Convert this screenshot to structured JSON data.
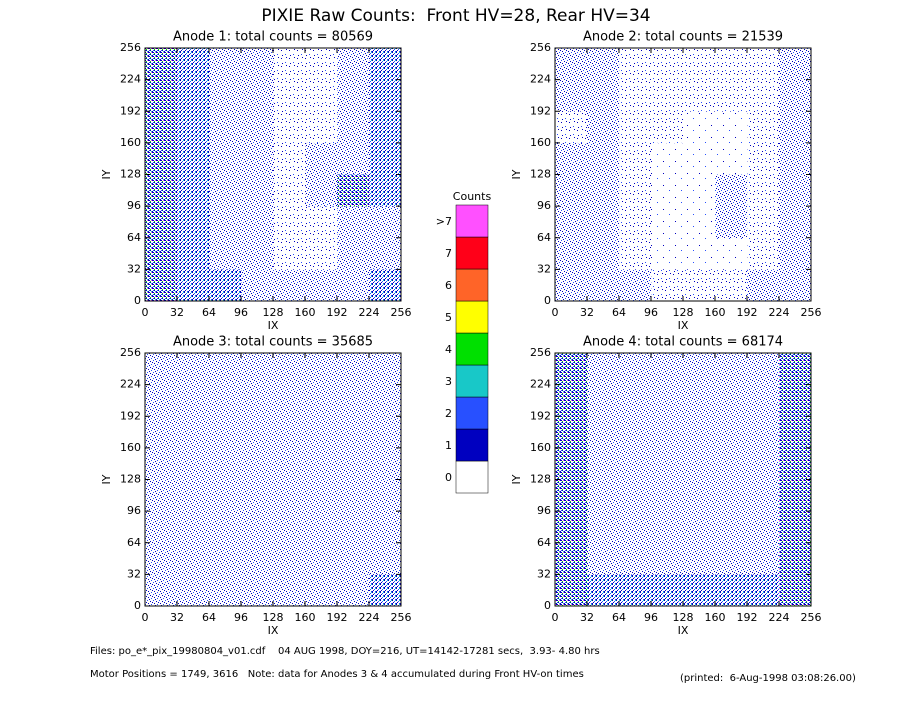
{
  "title": "PIXIE Raw Counts:  Front HV=28, Rear HV=34",
  "colorbar": {
    "title": "Counts",
    "levels": [
      {
        "label": "0",
        "color": "#ffffff"
      },
      {
        "label": "1",
        "color": "#0000c0"
      },
      {
        "label": "2",
        "color": "#2850ff"
      },
      {
        "label": "3",
        "color": "#18c8c8"
      },
      {
        "label": "4",
        "color": "#00e000"
      },
      {
        "label": "5",
        "color": "#ffff00"
      },
      {
        "label": "6",
        "color": "#ff6428"
      },
      {
        "label": "7",
        "color": "#ff0018"
      },
      {
        "label": ">7",
        "color": "#ff50ff"
      }
    ]
  },
  "footer": [
    "Files: po_e*_pix_19980804_v01.cdf    04 AUG 1998, DOY=216, UT=14142-17281 secs,  3.93- 4.80 hrs",
    "Motor Positions = 1749, 3616   Note: data for Anodes 3 & 4 accumulated during Front HV-on times",
    "(printed:  6-Aug-1998 03:08:26.00)"
  ],
  "chart_data": [
    {
      "type": "heatmap",
      "title": "Anode 1: total counts = 80569",
      "xlabel": "IX",
      "ylabel": "IY",
      "xlim": [
        0,
        256
      ],
      "ylim": [
        0,
        256
      ],
      "xticks": [
        0,
        32,
        64,
        96,
        128,
        160,
        192,
        224,
        256
      ],
      "yticks": [
        0,
        32,
        64,
        96,
        128,
        160,
        192,
        224,
        256
      ],
      "values": [
        [
          3,
          2,
          1.5,
          1,
          0.5,
          0.5,
          1,
          2.5
        ],
        [
          3,
          2,
          1.5,
          1,
          0.5,
          0.5,
          1.5,
          2.5
        ],
        [
          3,
          2,
          1.5,
          1,
          0.5,
          0.5,
          1.5,
          2.5
        ],
        [
          3,
          2.5,
          1.5,
          1,
          0.5,
          1,
          1.5,
          2
        ],
        [
          3,
          2,
          1.5,
          1,
          0.5,
          1,
          3,
          2
        ],
        [
          3,
          2,
          1.5,
          1,
          0.5,
          0.5,
          1.5,
          1.5
        ],
        [
          3,
          2,
          1.5,
          1,
          0.5,
          0.5,
          1,
          1.5
        ],
        [
          3,
          2.5,
          2,
          1.5,
          1,
          1,
          1.5,
          2
        ]
      ]
    },
    {
      "type": "heatmap",
      "title": "Anode 2: total counts = 21539",
      "xlabel": "IX",
      "ylabel": "IY",
      "xlim": [
        0,
        256
      ],
      "ylim": [
        0,
        256
      ],
      "xticks": [
        0,
        32,
        64,
        96,
        128,
        160,
        192,
        224,
        256
      ],
      "yticks": [
        0,
        32,
        64,
        96,
        128,
        160,
        192,
        224,
        256
      ],
      "values": [
        [
          1,
          1.5,
          0.5,
          0.5,
          0.5,
          0.5,
          0.5,
          1.5
        ],
        [
          1,
          1,
          0.5,
          0.5,
          0.5,
          0.5,
          0.5,
          1.5
        ],
        [
          0.5,
          1.5,
          0.5,
          0.5,
          0.3,
          0.3,
          0.5,
          1
        ],
        [
          1,
          1,
          0.5,
          0.3,
          0.3,
          0.3,
          0.5,
          1
        ],
        [
          1.5,
          1,
          0.5,
          0.3,
          0.3,
          1.5,
          0.5,
          1
        ],
        [
          1,
          1.5,
          0.5,
          0.3,
          0.3,
          1,
          0.5,
          1
        ],
        [
          1,
          1,
          0.5,
          0.3,
          0.3,
          0.3,
          0.5,
          1
        ],
        [
          1,
          1.5,
          1,
          0.5,
          0.5,
          0.5,
          1,
          1.5
        ]
      ]
    },
    {
      "type": "heatmap",
      "title": "Anode 3: total counts = 35685",
      "xlabel": "IX",
      "ylabel": "IY",
      "xlim": [
        0,
        256
      ],
      "ylim": [
        0,
        256
      ],
      "xticks": [
        0,
        32,
        64,
        96,
        128,
        160,
        192,
        224,
        256
      ],
      "yticks": [
        0,
        32,
        64,
        96,
        128,
        160,
        192,
        224,
        256
      ],
      "values": [
        [
          1.5,
          1,
          1,
          1,
          1,
          1,
          1,
          1.5
        ],
        [
          1.5,
          1,
          1,
          1,
          1,
          1,
          1,
          1.5
        ],
        [
          1.5,
          1,
          1,
          1,
          1,
          1,
          1,
          1.5
        ],
        [
          1.5,
          1,
          1,
          1,
          1,
          1,
          1,
          1.5
        ],
        [
          1.5,
          1,
          1,
          1,
          1,
          1,
          1,
          1.5
        ],
        [
          1.5,
          1,
          1,
          1,
          1,
          1,
          1,
          1.5
        ],
        [
          1.5,
          1,
          1,
          1,
          1,
          1,
          1,
          1.5
        ],
        [
          1.5,
          1.5,
          1.5,
          1.5,
          1.5,
          1.5,
          1.5,
          2
        ]
      ]
    },
    {
      "type": "heatmap",
      "title": "Anode 4: total counts = 68174",
      "xlabel": "IX",
      "ylabel": "IY",
      "xlim": [
        0,
        256
      ],
      "ylim": [
        0,
        256
      ],
      "xticks": [
        0,
        32,
        64,
        96,
        128,
        160,
        192,
        224,
        256
      ],
      "yticks": [
        0,
        32,
        64,
        96,
        128,
        160,
        192,
        224,
        256
      ],
      "values": [
        [
          3,
          1.5,
          1.5,
          1.5,
          1.5,
          1.5,
          1.5,
          3
        ],
        [
          3,
          1.5,
          1.5,
          1.5,
          1.5,
          1.5,
          1.5,
          3
        ],
        [
          3,
          1.5,
          1.5,
          1.5,
          1.5,
          1.5,
          1.5,
          3
        ],
        [
          3,
          1.5,
          1.5,
          1.5,
          1.5,
          1.5,
          1.5,
          3
        ],
        [
          3,
          1.5,
          1.5,
          1.5,
          1.5,
          1.5,
          1.5,
          3
        ],
        [
          3,
          1.5,
          1.5,
          1.5,
          1.5,
          1.5,
          1.5,
          3
        ],
        [
          3,
          1.5,
          1.5,
          1.5,
          1.5,
          1.5,
          1.5,
          3
        ],
        [
          3,
          2,
          2,
          2,
          2,
          2,
          2,
          3
        ]
      ]
    }
  ]
}
